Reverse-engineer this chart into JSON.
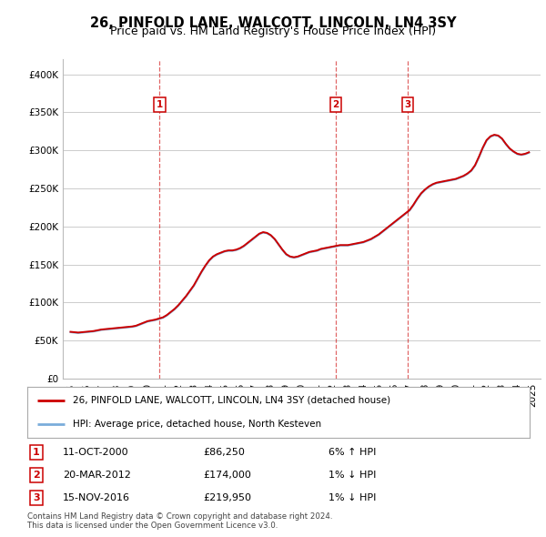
{
  "title": "26, PINFOLD LANE, WALCOTT, LINCOLN, LN4 3SY",
  "subtitle": "Price paid vs. HM Land Registry's House Price Index (HPI)",
  "ylabel_ticks": [
    "£0",
    "£50K",
    "£100K",
    "£150K",
    "£200K",
    "£250K",
    "£300K",
    "£350K",
    "£400K"
  ],
  "ytick_values": [
    0,
    50000,
    100000,
    150000,
    200000,
    250000,
    300000,
    350000,
    400000
  ],
  "ylim": [
    0,
    420000
  ],
  "xlim_start": 1994.5,
  "xlim_end": 2025.5,
  "transactions": [
    {
      "label": "1",
      "date": "11-OCT-2000",
      "price": 86250,
      "year": 2000.78,
      "hpi_text": "6% ↑ HPI"
    },
    {
      "label": "2",
      "date": "20-MAR-2012",
      "price": 174000,
      "year": 2012.22,
      "hpi_text": "1% ↓ HPI"
    },
    {
      "label": "3",
      "date": "15-NOV-2016",
      "price": 219950,
      "year": 2016.88,
      "hpi_text": "1% ↓ HPI"
    }
  ],
  "legend_line1": "26, PINFOLD LANE, WALCOTT, LINCOLN, LN4 3SY (detached house)",
  "legend_line2": "HPI: Average price, detached house, North Kesteven",
  "footnote1": "Contains HM Land Registry data © Crown copyright and database right 2024.",
  "footnote2": "This data is licensed under the Open Government Licence v3.0.",
  "red_color": "#cc0000",
  "blue_color": "#7aadda",
  "fill_color": "#c8dff2",
  "dashed_color": "#cc0000",
  "background_color": "#ffffff",
  "grid_color": "#cccccc",
  "title_fontsize": 10.5,
  "subtitle_fontsize": 9,
  "tick_fontsize": 7.5,
  "hpi_years": [
    1995.0,
    1995.25,
    1995.5,
    1995.75,
    1996.0,
    1996.25,
    1996.5,
    1996.75,
    1997.0,
    1997.25,
    1997.5,
    1997.75,
    1998.0,
    1998.25,
    1998.5,
    1998.75,
    1999.0,
    1999.25,
    1999.5,
    1999.75,
    2000.0,
    2000.25,
    2000.5,
    2000.75,
    2001.0,
    2001.25,
    2001.5,
    2001.75,
    2002.0,
    2002.25,
    2002.5,
    2002.75,
    2003.0,
    2003.25,
    2003.5,
    2003.75,
    2004.0,
    2004.25,
    2004.5,
    2004.75,
    2005.0,
    2005.25,
    2005.5,
    2005.75,
    2006.0,
    2006.25,
    2006.5,
    2006.75,
    2007.0,
    2007.25,
    2007.5,
    2007.75,
    2008.0,
    2008.25,
    2008.5,
    2008.75,
    2009.0,
    2009.25,
    2009.5,
    2009.75,
    2010.0,
    2010.25,
    2010.5,
    2010.75,
    2011.0,
    2011.25,
    2011.5,
    2011.75,
    2012.0,
    2012.25,
    2012.5,
    2012.75,
    2013.0,
    2013.25,
    2013.5,
    2013.75,
    2014.0,
    2014.25,
    2014.5,
    2014.75,
    2015.0,
    2015.25,
    2015.5,
    2015.75,
    2016.0,
    2016.25,
    2016.5,
    2016.75,
    2017.0,
    2017.25,
    2017.5,
    2017.75,
    2018.0,
    2018.25,
    2018.5,
    2018.75,
    2019.0,
    2019.25,
    2019.5,
    2019.75,
    2020.0,
    2020.25,
    2020.5,
    2020.75,
    2021.0,
    2021.25,
    2021.5,
    2021.75,
    2022.0,
    2022.25,
    2022.5,
    2022.75,
    2023.0,
    2023.25,
    2023.5,
    2023.75,
    2024.0,
    2024.25,
    2024.5,
    2024.75
  ],
  "hpi_values": [
    61000,
    60500,
    60000,
    60500,
    61000,
    61500,
    62000,
    63000,
    64000,
    64500,
    65000,
    65500,
    66000,
    66500,
    67000,
    67500,
    68000,
    69000,
    71000,
    73000,
    75000,
    76000,
    77000,
    78500,
    80000,
    83000,
    87000,
    91000,
    96000,
    102000,
    108000,
    115000,
    122000,
    131000,
    140000,
    148000,
    155000,
    160000,
    163000,
    165000,
    167000,
    168000,
    168000,
    169000,
    171000,
    174000,
    178000,
    182000,
    186000,
    190000,
    192000,
    191000,
    188000,
    183000,
    176000,
    169000,
    163000,
    160000,
    159000,
    160000,
    162000,
    164000,
    166000,
    167000,
    168000,
    170000,
    171000,
    172000,
    173000,
    174000,
    175000,
    175000,
    175000,
    176000,
    177000,
    178000,
    179000,
    181000,
    183000,
    186000,
    189000,
    193000,
    197000,
    201000,
    205000,
    209000,
    213000,
    217000,
    221000,
    228000,
    236000,
    243000,
    248000,
    252000,
    255000,
    257000,
    258000,
    259000,
    260000,
    261000,
    262000,
    264000,
    266000,
    269000,
    273000,
    280000,
    291000,
    303000,
    313000,
    318000,
    320000,
    319000,
    315000,
    308000,
    302000,
    298000,
    295000,
    294000,
    295000,
    297000
  ],
  "red_values": [
    61500,
    61000,
    60500,
    61000,
    61500,
    62000,
    62500,
    63500,
    64500,
    65000,
    65500,
    66000,
    66500,
    67000,
    67500,
    68000,
    68500,
    69500,
    71500,
    73500,
    75500,
    76500,
    77500,
    79000,
    80500,
    83500,
    87500,
    91500,
    96500,
    102500,
    108500,
    115500,
    122500,
    131500,
    140500,
    148500,
    155500,
    160500,
    163500,
    165500,
    167500,
    168500,
    168500,
    169500,
    171500,
    174500,
    178500,
    182500,
    186500,
    190500,
    192500,
    191500,
    188500,
    183500,
    176500,
    169500,
    163500,
    160500,
    159500,
    160500,
    162500,
    164500,
    166500,
    167500,
    168500,
    170500,
    171500,
    172500,
    173500,
    174500,
    175500,
    175500,
    175500,
    176500,
    177500,
    178500,
    179500,
    181500,
    183500,
    186500,
    189500,
    193500,
    197500,
    201500,
    205500,
    209500,
    213500,
    217500,
    221500,
    228500,
    236500,
    243500,
    248500,
    252500,
    255500,
    257500,
    258500,
    259500,
    260500,
    261500,
    262500,
    264500,
    266500,
    269500,
    273500,
    280500,
    291500,
    303500,
    313500,
    318500,
    320500,
    319500,
    315500,
    308500,
    302500,
    298500,
    295500,
    294500,
    295500,
    297500
  ]
}
